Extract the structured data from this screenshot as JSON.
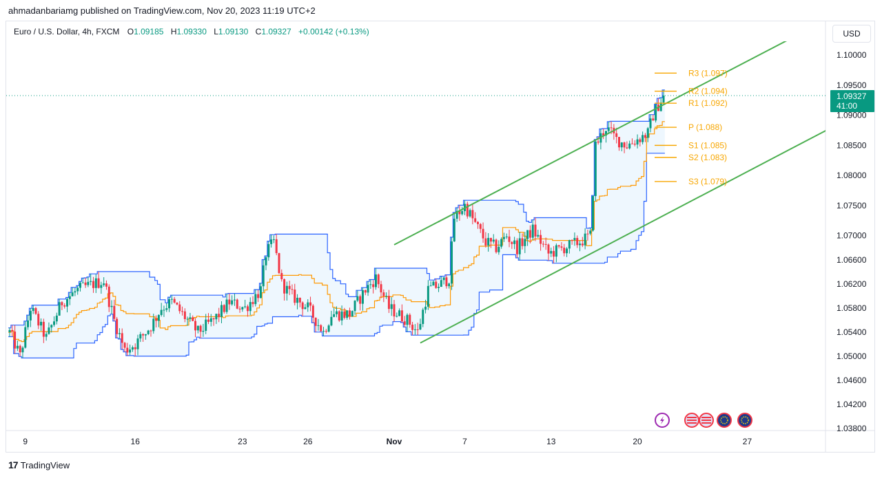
{
  "header": {
    "publisher": "ahmadanbariamg published on TradingView.com, Nov 20, 2023 11:19 UTC+2"
  },
  "legend": {
    "symbol": "Euro / U.S. Dollar, 4h, FXCM",
    "open_label": "O",
    "open": "1.09185",
    "high_label": "H",
    "high": "1.09330",
    "low_label": "L",
    "low": "1.09130",
    "close_label": "C",
    "close": "1.09327",
    "change": "+0.00142 (+0.13%)"
  },
  "currency": "USD",
  "price_tag": {
    "price": "1.09327",
    "countdown": "41:00"
  },
  "footer": {
    "brand": "TradingView"
  },
  "icons": [
    "lightning-icon",
    "us-flag-icon",
    "us-flag-icon",
    "eu-flag-icon",
    "eu-flag-icon"
  ],
  "colors": {
    "up": "#089981",
    "down": "#f23645",
    "channel": "#4caf50",
    "donchian": "#2962ff",
    "basis": "#ff9800",
    "pivot": "#f7a600",
    "fill": "#e3f2fd"
  },
  "chart_data": {
    "type": "candlestick",
    "ylim": [
      1.038,
      1.104
    ],
    "y_ticks": [
      "1.10000",
      "1.09500",
      "1.09000",
      "1.08500",
      "1.08000",
      "1.07500",
      "1.07000",
      "1.06600",
      "1.06200",
      "1.05800",
      "1.05400",
      "1.05000",
      "1.04600",
      "1.04200",
      "1.03800"
    ],
    "y_tick_values": [
      1.1,
      1.095,
      1.09,
      1.085,
      1.08,
      1.075,
      1.07,
      1.066,
      1.062,
      1.058,
      1.054,
      1.05,
      1.046,
      1.042,
      1.038
    ],
    "x_ticks": [
      "9",
      "16",
      "23",
      "26",
      "Nov",
      "7",
      "13",
      "20",
      "27"
    ],
    "x_tick_index": [
      6,
      48,
      89,
      114,
      147,
      174,
      207,
      240,
      282
    ],
    "pivots": [
      {
        "label": "R3 (1.097)",
        "value": 1.097
      },
      {
        "label": "R2 (1.094)",
        "value": 1.094
      },
      {
        "label": "R1 (1.092)",
        "value": 1.092
      },
      {
        "label": "P (1.088)",
        "value": 1.088
      },
      {
        "label": "S1 (1.085)",
        "value": 1.085
      },
      {
        "label": "S2 (1.083)",
        "value": 1.083
      },
      {
        "label": "S3 (1.079)",
        "value": 1.079
      }
    ],
    "trend_channel": [
      {
        "x1": 147,
        "y1": 1.0685,
        "x2": 302,
        "y2": 1.1035
      },
      {
        "x1": 157,
        "y1": 1.0522,
        "x2": 321,
        "y2": 1.0895
      }
    ],
    "anchors": [
      [
        0,
        1.054
      ],
      [
        4,
        1.05
      ],
      [
        8,
        1.058
      ],
      [
        14,
        1.053
      ],
      [
        20,
        1.059
      ],
      [
        26,
        1.061
      ],
      [
        32,
        1.062
      ],
      [
        36,
        1.0625
      ],
      [
        40,
        1.056
      ],
      [
        44,
        1.051
      ],
      [
        48,
        1.052
      ],
      [
        54,
        1.055
      ],
      [
        58,
        1.058
      ],
      [
        62,
        1.059
      ],
      [
        66,
        1.057
      ],
      [
        72,
        1.054
      ],
      [
        78,
        1.056
      ],
      [
        84,
        1.059
      ],
      [
        90,
        1.058
      ],
      [
        96,
        1.061
      ],
      [
        98,
        1.067
      ],
      [
        101,
        1.069
      ],
      [
        104,
        1.062
      ],
      [
        108,
        1.06
      ],
      [
        114,
        1.058
      ],
      [
        120,
        1.054
      ],
      [
        123,
        1.057
      ],
      [
        130,
        1.057
      ],
      [
        136,
        1.061
      ],
      [
        140,
        1.063
      ],
      [
        145,
        1.058
      ],
      [
        152,
        1.056
      ],
      [
        156,
        1.054
      ],
      [
        160,
        1.061
      ],
      [
        165,
        1.062
      ],
      [
        168,
        1.063
      ],
      [
        170,
        1.073
      ],
      [
        174,
        1.075
      ],
      [
        178,
        1.072
      ],
      [
        182,
        1.069
      ],
      [
        186,
        1.068
      ],
      [
        190,
        1.07
      ],
      [
        194,
        1.068
      ],
      [
        200,
        1.071
      ],
      [
        206,
        1.067
      ],
      [
        212,
        1.068
      ],
      [
        218,
        1.069
      ],
      [
        222,
        1.07
      ],
      [
        224,
        1.085
      ],
      [
        228,
        1.088
      ],
      [
        232,
        1.086
      ],
      [
        236,
        1.085
      ],
      [
        240,
        1.086
      ],
      [
        244,
        1.087
      ],
      [
        246,
        1.09
      ],
      [
        249,
        1.0925
      ],
      [
        250,
        1.0933
      ]
    ],
    "last_close": 1.09327
  }
}
